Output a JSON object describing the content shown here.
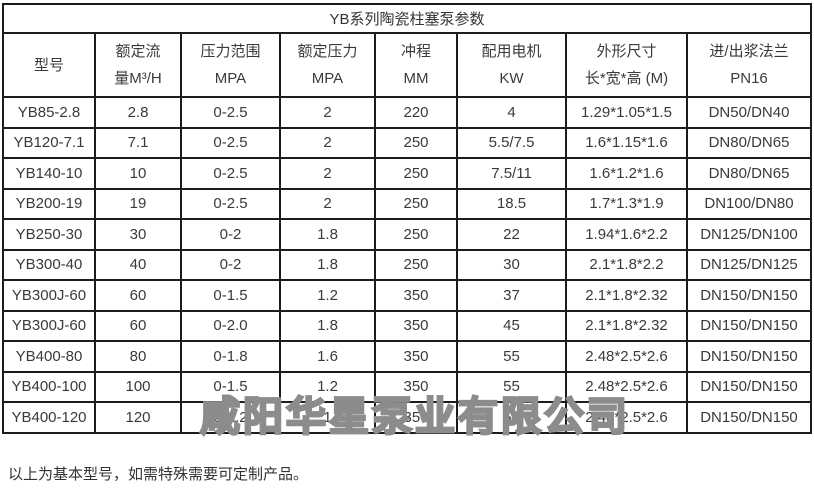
{
  "title": "YB系列陶瓷柱塞泵参数",
  "columns": [
    {
      "line1": "型号",
      "line2": ""
    },
    {
      "line1": "额定流",
      "line2": "量M³/H"
    },
    {
      "line1": "压力范围",
      "line2": "MPA"
    },
    {
      "line1": "额定压力",
      "line2": "MPA"
    },
    {
      "line1": "冲程",
      "line2": "MM"
    },
    {
      "line1": "配用电机",
      "line2": "KW"
    },
    {
      "line1": "外形尺寸",
      "line2": "长*宽*高 (M)"
    },
    {
      "line1": "进/出浆法兰",
      "line2": "PN16"
    }
  ],
  "rows": [
    [
      "YB85-2.8",
      "2.8",
      "0-2.5",
      "2",
      "220",
      "4",
      "1.29*1.05*1.5",
      "DN50/DN40"
    ],
    [
      "YB120-7.1",
      "7.1",
      "0-2.5",
      "2",
      "250",
      "5.5/7.5",
      "1.6*1.15*1.6",
      "DN80/DN65"
    ],
    [
      "YB140-10",
      "10",
      "0-2.5",
      "2",
      "250",
      "7.5/11",
      "1.6*1.2*1.6",
      "DN80/DN65"
    ],
    [
      "YB200-19",
      "19",
      "0-2.5",
      "2",
      "250",
      "18.5",
      "1.7*1.3*1.9",
      "DN100/DN80"
    ],
    [
      "YB250-30",
      "30",
      "0-2",
      "1.8",
      "250",
      "22",
      "1.94*1.6*2.2",
      "DN125/DN100"
    ],
    [
      "YB300-40",
      "40",
      "0-2",
      "1.8",
      "250",
      "30",
      "2.1*1.8*2.2",
      "DN125/DN125"
    ],
    [
      "YB300J-60",
      "60",
      "0-1.5",
      "1.2",
      "350",
      "37",
      "2.1*1.8*2.32",
      "DN150/DN150"
    ],
    [
      "YB300J-60",
      "60",
      "0-2.0",
      "1.8",
      "350",
      "45",
      "2.1*1.8*2.32",
      "DN150/DN150"
    ],
    [
      "YB400-80",
      "80",
      "0-1.8",
      "1.6",
      "350",
      "55",
      "2.48*2.5*2.6",
      "DN150/DN150"
    ],
    [
      "YB400-100",
      "100",
      "0-1.5",
      "1.2",
      "350",
      "55",
      "2.48*2.5*2.6",
      "DN150/DN150"
    ],
    [
      "YB400-120",
      "120",
      "0-1.2",
      "1",
      "350",
      "55",
      "2.48*2.5*2.6",
      "DN150/DN150"
    ]
  ],
  "footer_note": "以上为基本型号，如需特殊需要可定制产品。",
  "watermark": "咸阳华星泵业有限公司",
  "colors": {
    "border": "#1c1c1c",
    "text": "#3a3a3a",
    "watermark_outline": "#8c8c8c",
    "background": "#ffffff"
  }
}
